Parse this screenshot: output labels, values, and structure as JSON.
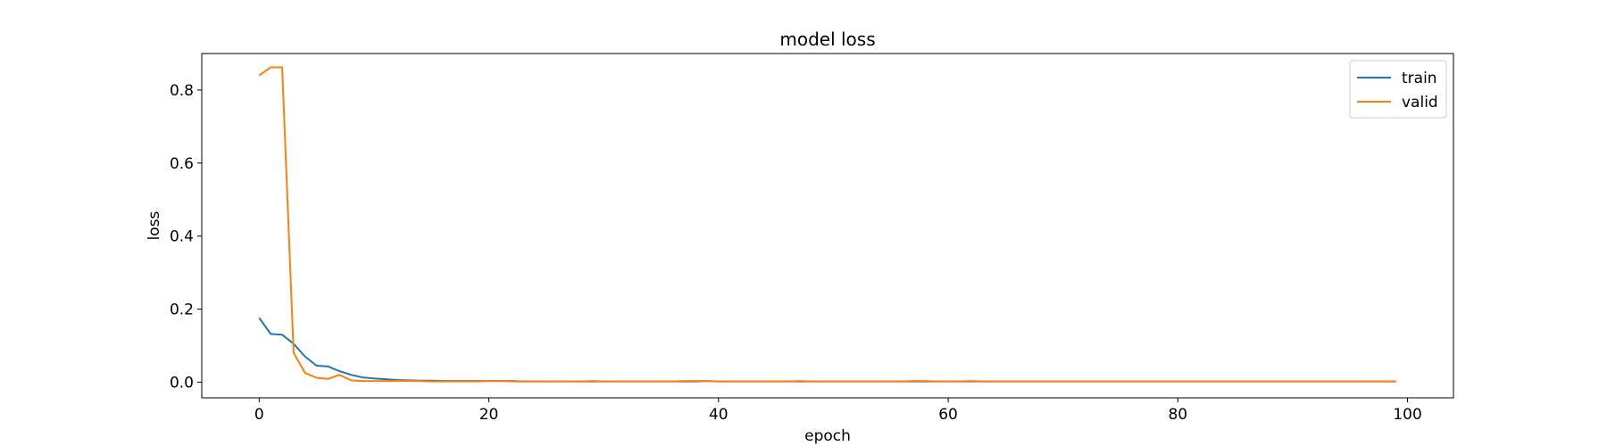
{
  "chart_data": {
    "type": "line",
    "title": "model loss",
    "xlabel": "epoch",
    "ylabel": "loss",
    "xlim": [
      -5,
      104
    ],
    "ylim": [
      -0.043,
      0.9
    ],
    "xticks": [
      0,
      20,
      40,
      60,
      80,
      100
    ],
    "yticks": [
      0.0,
      0.2,
      0.4,
      0.6,
      0.8
    ],
    "ytick_labels": [
      "0.0",
      "0.2",
      "0.4",
      "0.6",
      "0.8"
    ],
    "grid": false,
    "legend_position": "top-right",
    "x": [
      0,
      1,
      2,
      3,
      4,
      5,
      6,
      7,
      8,
      9,
      10,
      11,
      12,
      13,
      14,
      15,
      16,
      17,
      18,
      19,
      20,
      21,
      22,
      23,
      24,
      25,
      26,
      27,
      28,
      29,
      30,
      31,
      32,
      33,
      34,
      35,
      36,
      37,
      38,
      39,
      40,
      41,
      42,
      43,
      44,
      45,
      46,
      47,
      48,
      49,
      50,
      51,
      52,
      53,
      54,
      55,
      56,
      57,
      58,
      59,
      60,
      61,
      62,
      63,
      64,
      65,
      66,
      67,
      68,
      69,
      70,
      71,
      72,
      73,
      74,
      75,
      76,
      77,
      78,
      79,
      80,
      81,
      82,
      83,
      84,
      85,
      86,
      87,
      88,
      89,
      90,
      91,
      92,
      93,
      94,
      95,
      96,
      97,
      98,
      99
    ],
    "series": [
      {
        "name": "train",
        "color": "#1f77b4",
        "values": [
          0.176,
          0.132,
          0.13,
          0.105,
          0.07,
          0.045,
          0.043,
          0.03,
          0.02,
          0.013,
          0.01,
          0.008,
          0.006,
          0.005,
          0.004,
          0.004,
          0.003,
          0.003,
          0.003,
          0.003,
          0.003,
          0.003,
          0.003,
          0.002,
          0.002,
          0.002,
          0.002,
          0.002,
          0.002,
          0.002,
          0.002,
          0.002,
          0.002,
          0.002,
          0.002,
          0.002,
          0.002,
          0.002,
          0.002,
          0.003,
          0.002,
          0.002,
          0.002,
          0.002,
          0.002,
          0.002,
          0.002,
          0.002,
          0.002,
          0.002,
          0.002,
          0.002,
          0.002,
          0.002,
          0.002,
          0.002,
          0.002,
          0.002,
          0.002,
          0.002,
          0.002,
          0.002,
          0.002,
          0.002,
          0.002,
          0.002,
          0.002,
          0.002,
          0.002,
          0.002,
          0.002,
          0.002,
          0.002,
          0.002,
          0.002,
          0.002,
          0.002,
          0.002,
          0.002,
          0.002,
          0.002,
          0.002,
          0.002,
          0.002,
          0.002,
          0.002,
          0.002,
          0.002,
          0.002,
          0.002,
          0.002,
          0.002,
          0.002,
          0.002,
          0.002,
          0.002,
          0.002,
          0.002,
          0.002,
          0.002
        ]
      },
      {
        "name": "valid",
        "color": "#ff7f0e",
        "values": [
          0.84,
          0.862,
          0.862,
          0.08,
          0.025,
          0.012,
          0.009,
          0.02,
          0.005,
          0.003,
          0.003,
          0.003,
          0.003,
          0.003,
          0.003,
          0.002,
          0.002,
          0.002,
          0.002,
          0.002,
          0.003,
          0.003,
          0.002,
          0.002,
          0.002,
          0.002,
          0.002,
          0.002,
          0.002,
          0.003,
          0.002,
          0.002,
          0.002,
          0.002,
          0.002,
          0.002,
          0.002,
          0.003,
          0.003,
          0.003,
          0.002,
          0.002,
          0.002,
          0.002,
          0.002,
          0.002,
          0.002,
          0.003,
          0.002,
          0.002,
          0.002,
          0.002,
          0.002,
          0.002,
          0.002,
          0.002,
          0.002,
          0.003,
          0.003,
          0.002,
          0.002,
          0.002,
          0.003,
          0.002,
          0.002,
          0.002,
          0.002,
          0.002,
          0.002,
          0.002,
          0.002,
          0.002,
          0.002,
          0.002,
          0.002,
          0.002,
          0.002,
          0.002,
          0.002,
          0.002,
          0.002,
          0.002,
          0.002,
          0.002,
          0.002,
          0.002,
          0.002,
          0.002,
          0.002,
          0.002,
          0.002,
          0.002,
          0.002,
          0.002,
          0.002,
          0.002,
          0.002,
          0.002,
          0.002,
          0.002
        ]
      }
    ]
  }
}
